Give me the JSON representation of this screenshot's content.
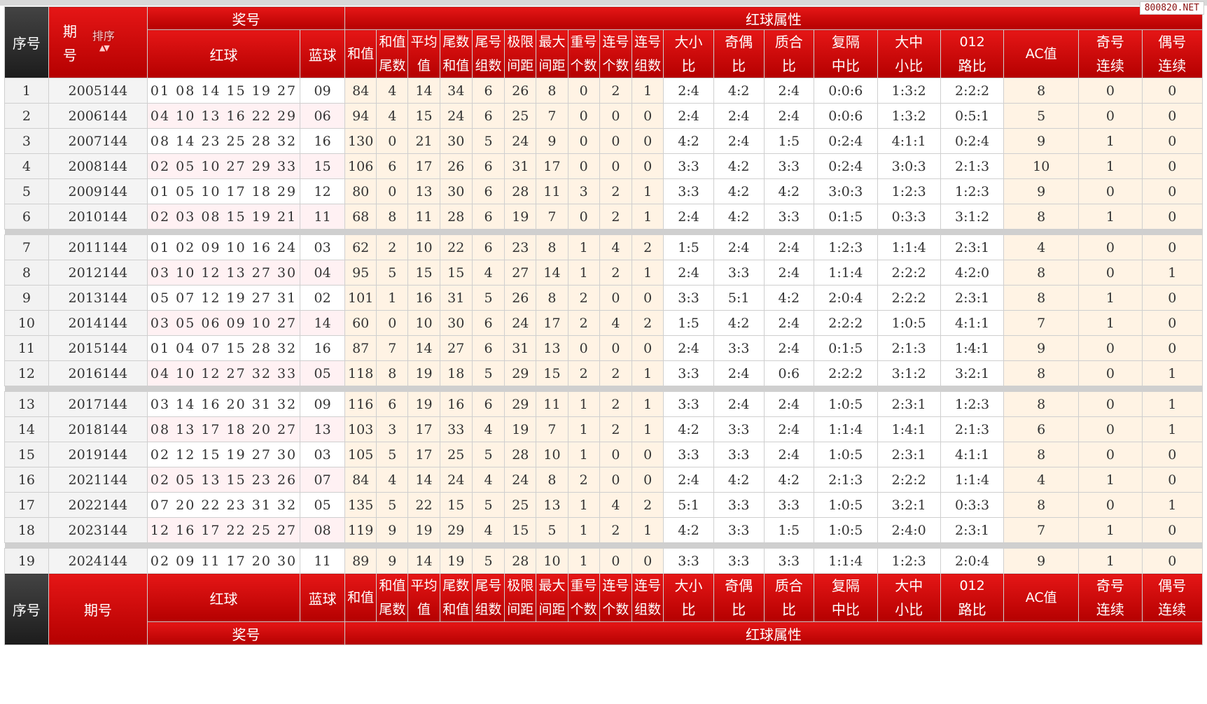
{
  "watermark": "800820.NET",
  "header": {
    "seq": "序号",
    "period_top": "期",
    "period_bottom": "号",
    "sort": "排序",
    "sort_arrows": "▲▼",
    "prize": "奖号",
    "attrs": "红球属性",
    "red": "红球",
    "blue": "蓝球",
    "cols": [
      [
        "和值",
        ""
      ],
      [
        "和值",
        "尾数"
      ],
      [
        "平均",
        "值"
      ],
      [
        "尾数",
        "和值"
      ],
      [
        "尾号",
        "组数"
      ],
      [
        "极限",
        "间距"
      ],
      [
        "最大",
        "间距"
      ],
      [
        "重号",
        "个数"
      ],
      [
        "连号",
        "个数"
      ],
      [
        "连号",
        "组数"
      ],
      [
        "大小",
        "比"
      ],
      [
        "奇偶",
        "比"
      ],
      [
        "质合",
        "比"
      ],
      [
        "复隔",
        "中比"
      ],
      [
        "大中",
        "小比"
      ],
      [
        "012",
        "路比"
      ],
      [
        "AC值",
        ""
      ],
      [
        "奇号",
        "连续"
      ],
      [
        "偶号",
        "连续"
      ]
    ],
    "period_footer": "期号"
  },
  "rows": [
    {
      "seq": "1",
      "period": "2005144",
      "red": "01 08 14 15 19 27",
      "blue": "09",
      "v": [
        "84",
        "4",
        "14",
        "34",
        "6",
        "26",
        "8",
        "0",
        "2",
        "1",
        "2:4",
        "4:2",
        "2:4",
        "0:0:6",
        "1:3:2",
        "2:2:2",
        "8",
        "0",
        "0"
      ]
    },
    {
      "seq": "2",
      "period": "2006144",
      "red": "04 10 13 16 22 29",
      "blue": "06",
      "v": [
        "94",
        "4",
        "15",
        "24",
        "6",
        "25",
        "7",
        "0",
        "0",
        "0",
        "2:4",
        "2:4",
        "2:4",
        "0:0:6",
        "1:3:2",
        "0:5:1",
        "5",
        "0",
        "0"
      ]
    },
    {
      "seq": "3",
      "period": "2007144",
      "red": "08 14 23 25 28 32",
      "blue": "16",
      "v": [
        "130",
        "0",
        "21",
        "30",
        "5",
        "24",
        "9",
        "0",
        "0",
        "0",
        "4:2",
        "2:4",
        "1:5",
        "0:2:4",
        "4:1:1",
        "0:2:4",
        "9",
        "1",
        "0"
      ]
    },
    {
      "seq": "4",
      "period": "2008144",
      "red": "02 05 10 27 29 33",
      "blue": "15",
      "v": [
        "106",
        "6",
        "17",
        "26",
        "6",
        "31",
        "17",
        "0",
        "0",
        "0",
        "3:3",
        "4:2",
        "3:3",
        "0:2:4",
        "3:0:3",
        "2:1:3",
        "10",
        "1",
        "0"
      ]
    },
    {
      "seq": "5",
      "period": "2009144",
      "red": "01 05 10 17 18 29",
      "blue": "12",
      "v": [
        "80",
        "0",
        "13",
        "30",
        "6",
        "28",
        "11",
        "3",
        "2",
        "1",
        "3:3",
        "4:2",
        "4:2",
        "3:0:3",
        "1:2:3",
        "1:2:3",
        "9",
        "0",
        "0"
      ]
    },
    {
      "seq": "6",
      "period": "2010144",
      "red": "02 03 08 15 19 21",
      "blue": "11",
      "v": [
        "68",
        "8",
        "11",
        "28",
        "6",
        "19",
        "7",
        "0",
        "2",
        "1",
        "2:4",
        "4:2",
        "3:3",
        "0:1:5",
        "0:3:3",
        "3:1:2",
        "8",
        "1",
        "0"
      ]
    },
    {
      "seq": "7",
      "period": "2011144",
      "red": "01 02 09 10 16 24",
      "blue": "03",
      "v": [
        "62",
        "2",
        "10",
        "22",
        "6",
        "23",
        "8",
        "1",
        "4",
        "2",
        "1:5",
        "2:4",
        "2:4",
        "1:2:3",
        "1:1:4",
        "2:3:1",
        "4",
        "0",
        "0"
      ]
    },
    {
      "seq": "8",
      "period": "2012144",
      "red": "03 10 12 13 27 30",
      "blue": "04",
      "v": [
        "95",
        "5",
        "15",
        "15",
        "4",
        "27",
        "14",
        "1",
        "2",
        "1",
        "2:4",
        "3:3",
        "2:4",
        "1:1:4",
        "2:2:2",
        "4:2:0",
        "8",
        "0",
        "1"
      ]
    },
    {
      "seq": "9",
      "period": "2013144",
      "red": "05 07 12 19 27 31",
      "blue": "02",
      "v": [
        "101",
        "1",
        "16",
        "31",
        "5",
        "26",
        "8",
        "2",
        "0",
        "0",
        "3:3",
        "5:1",
        "4:2",
        "2:0:4",
        "2:2:2",
        "2:3:1",
        "8",
        "1",
        "0"
      ]
    },
    {
      "seq": "10",
      "period": "2014144",
      "red": "03 05 06 09 10 27",
      "blue": "14",
      "v": [
        "60",
        "0",
        "10",
        "30",
        "6",
        "24",
        "17",
        "2",
        "4",
        "2",
        "1:5",
        "4:2",
        "2:4",
        "2:2:2",
        "1:0:5",
        "4:1:1",
        "7",
        "1",
        "0"
      ]
    },
    {
      "seq": "11",
      "period": "2015144",
      "red": "01 04 07 15 28 32",
      "blue": "16",
      "v": [
        "87",
        "7",
        "14",
        "27",
        "6",
        "31",
        "13",
        "0",
        "0",
        "0",
        "2:4",
        "3:3",
        "2:4",
        "0:1:5",
        "2:1:3",
        "1:4:1",
        "9",
        "0",
        "0"
      ]
    },
    {
      "seq": "12",
      "period": "2016144",
      "red": "04 10 12 27 32 33",
      "blue": "05",
      "v": [
        "118",
        "8",
        "19",
        "18",
        "5",
        "29",
        "15",
        "2",
        "2",
        "1",
        "3:3",
        "2:4",
        "0:6",
        "2:2:2",
        "3:1:2",
        "3:2:1",
        "8",
        "0",
        "1"
      ]
    },
    {
      "seq": "13",
      "period": "2017144",
      "red": "03 14 16 20 31 32",
      "blue": "09",
      "v": [
        "116",
        "6",
        "19",
        "16",
        "6",
        "29",
        "11",
        "1",
        "2",
        "1",
        "3:3",
        "2:4",
        "2:4",
        "1:0:5",
        "2:3:1",
        "1:2:3",
        "8",
        "0",
        "1"
      ]
    },
    {
      "seq": "14",
      "period": "2018144",
      "red": "08 13 17 18 20 27",
      "blue": "13",
      "v": [
        "103",
        "3",
        "17",
        "33",
        "4",
        "19",
        "7",
        "1",
        "2",
        "1",
        "4:2",
        "3:3",
        "2:4",
        "1:1:4",
        "1:4:1",
        "2:1:3",
        "6",
        "0",
        "1"
      ]
    },
    {
      "seq": "15",
      "period": "2019144",
      "red": "02 12 15 19 27 30",
      "blue": "03",
      "v": [
        "105",
        "5",
        "17",
        "25",
        "5",
        "28",
        "10",
        "1",
        "0",
        "0",
        "3:3",
        "3:3",
        "2:4",
        "1:0:5",
        "2:3:1",
        "4:1:1",
        "8",
        "0",
        "0"
      ]
    },
    {
      "seq": "16",
      "period": "2021144",
      "red": "02 05 13 15 23 26",
      "blue": "07",
      "v": [
        "84",
        "4",
        "14",
        "24",
        "4",
        "24",
        "8",
        "2",
        "0",
        "0",
        "2:4",
        "4:2",
        "4:2",
        "2:1:3",
        "2:2:2",
        "1:1:4",
        "4",
        "1",
        "0"
      ]
    },
    {
      "seq": "17",
      "period": "2022144",
      "red": "07 20 22 23 31 32",
      "blue": "05",
      "v": [
        "135",
        "5",
        "22",
        "15",
        "5",
        "25",
        "13",
        "1",
        "4",
        "2",
        "5:1",
        "3:3",
        "3:3",
        "1:0:5",
        "3:2:1",
        "0:3:3",
        "8",
        "0",
        "1"
      ]
    },
    {
      "seq": "18",
      "period": "2023144",
      "red": "12 16 17 22 25 27",
      "blue": "08",
      "v": [
        "119",
        "9",
        "19",
        "29",
        "4",
        "15",
        "5",
        "1",
        "2",
        "1",
        "4:2",
        "3:3",
        "1:5",
        "1:0:5",
        "2:4:0",
        "2:3:1",
        "7",
        "1",
        "0"
      ]
    },
    {
      "seq": "19",
      "period": "2024144",
      "red": "02 09 11 17 20 30",
      "blue": "11",
      "v": [
        "89",
        "9",
        "14",
        "19",
        "5",
        "28",
        "10",
        "1",
        "0",
        "0",
        "3:3",
        "3:3",
        "3:3",
        "1:1:4",
        "1:2:3",
        "2:0:4",
        "9",
        "1",
        "0"
      ]
    }
  ],
  "colors": {
    "header_red": "#cc0a0a",
    "header_dark": "#2b2b2b",
    "red_number": "#cc1e1e",
    "blue_number": "#2f4ea5",
    "cell_orange": "#cc5a00",
    "cell_green": "#2e8b20",
    "cell_bg": "#fff3e4"
  }
}
